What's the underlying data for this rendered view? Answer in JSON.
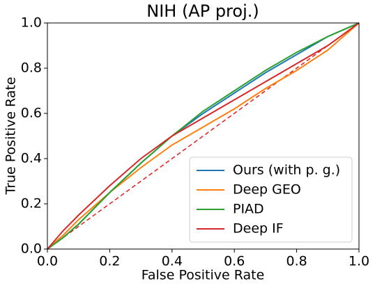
{
  "chart_data": {
    "type": "line",
    "title": "NIH (AP proj.)",
    "x_label": "False Positive Rate",
    "y_label": "True Positive Rate",
    "x": [
      0,
      0.05,
      0.1,
      0.2,
      0.3,
      0.4,
      0.5,
      0.6,
      0.7,
      0.8,
      0.9,
      1
    ],
    "series": [
      {
        "name": "Ours (with p. g.)",
        "color": "#1f77b4",
        "values": [
          0,
          0.05,
          0.11,
          0.25,
          0.38,
          0.5,
          0.6,
          0.69,
          0.78,
          0.86,
          0.94,
          1
        ]
      },
      {
        "name": "Deep GEO",
        "color": "#ff7f0e",
        "values": [
          0,
          0.06,
          0.13,
          0.25,
          0.36,
          0.46,
          0.54,
          0.62,
          0.71,
          0.79,
          0.88,
          1
        ]
      },
      {
        "name": "PIAD",
        "color": "#2ca02c",
        "values": [
          0,
          0.05,
          0.11,
          0.25,
          0.38,
          0.5,
          0.61,
          0.7,
          0.79,
          0.87,
          0.94,
          1
        ]
      },
      {
        "name": "Deep IF",
        "color": "#d62728",
        "values": [
          0,
          0.08,
          0.15,
          0.28,
          0.4,
          0.5,
          0.58,
          0.66,
          0.74,
          0.82,
          0.9,
          1
        ]
      }
    ],
    "xlim": [
      0,
      1
    ],
    "ylim": [
      0,
      1
    ],
    "xticks": [
      {
        "value": 0,
        "label": "0.0"
      },
      0.2,
      0.4,
      0.6,
      0.8,
      {
        "value": 1,
        "label": "1.0"
      }
    ],
    "yticks": [
      {
        "value": 0,
        "label": "0.0"
      },
      0.2,
      0.4,
      0.6,
      0.8,
      {
        "value": 1,
        "label": "1.0"
      }
    ],
    "grid": false,
    "legend_position": "lower-right"
  }
}
